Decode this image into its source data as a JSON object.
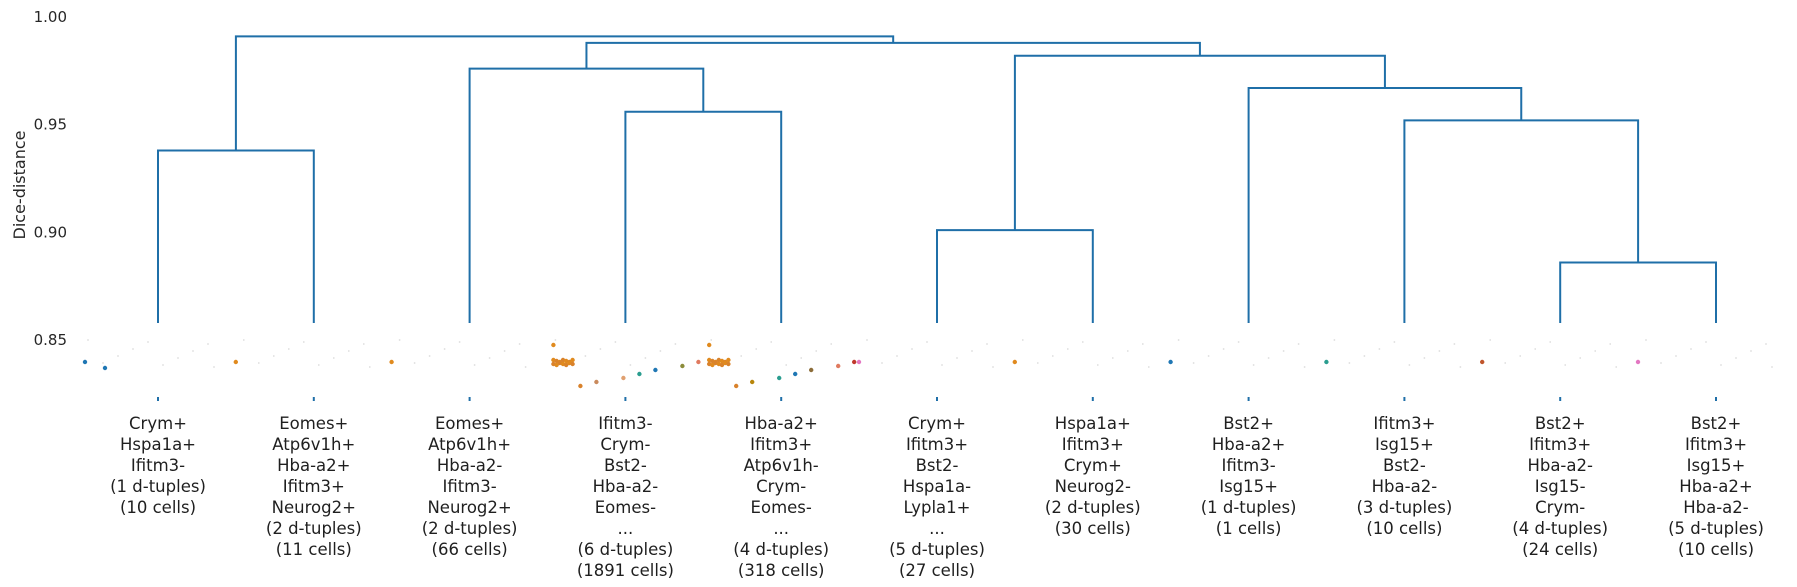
{
  "chart_data": {
    "type": "dendrogram",
    "ylabel": "Dice-distance",
    "ylim": [
      0.82,
      1.0
    ],
    "y_ticks": [
      "0.85",
      "0.90",
      "0.95",
      "1.00"
    ],
    "y_tick_values": [
      0.85,
      0.9,
      0.95,
      1.0
    ],
    "line_color": "#1f6fa8",
    "leaves": [
      {
        "lines": [
          "Crym+",
          "Hspa1a+",
          "Ifitm3-",
          "(1 d-tuples)",
          "(10 cells)"
        ],
        "dot_colors": [
          "#1f77b4",
          "#1f77b4"
        ]
      },
      {
        "lines": [
          "Eomes+",
          "Atp6v1h+",
          "Hba-a2+",
          "Ifitm3+",
          "Neurog2+",
          "(2 d-tuples)",
          "(11 cells)"
        ],
        "dot_colors": [
          "#e08a1e"
        ]
      },
      {
        "lines": [
          "Eomes+",
          "Atp6v1h+",
          "Hba-a2-",
          "Ifitm3-",
          "Neurog2+",
          "(2 d-tuples)",
          "(66 cells)"
        ],
        "dot_colors": [
          "#e08a1e"
        ]
      },
      {
        "lines": [
          "Ifitm3-",
          "Crym-",
          "Bst2-",
          "Hba-a2-",
          "Eomes-",
          "...",
          "(6 d-tuples)",
          "(1891 cells)"
        ],
        "dot_colors": [
          "#e08a1e",
          "#d9822b",
          "#c98a5c",
          "#e0a070",
          "#2a9d8f",
          "#1f77b4",
          "#8c8c3a",
          "#e07a5f"
        ]
      },
      {
        "lines": [
          "Hba-a2+",
          "Ifitm3+",
          "Atp6v1h-",
          "Crym-",
          "Eomes-",
          "...",
          "(4 d-tuples)",
          "(318 cells)"
        ],
        "dot_colors": [
          "#e08a1e",
          "#d9822b",
          "#b8860b",
          "#2a9d8f",
          "#1f77b4",
          "#8c6d3a",
          "#e07a5f",
          "#c0392b"
        ]
      },
      {
        "lines": [
          "Crym+",
          "Ifitm3+",
          "Bst2-",
          "Hspa1a-",
          "Lypla1+",
          "...",
          "(5 d-tuples)",
          "(27 cells)"
        ],
        "dot_colors": [
          "#e377c2"
        ]
      },
      {
        "lines": [
          "Hspa1a+",
          "Ifitm3+",
          "Crym+",
          "Neurog2-",
          "(2 d-tuples)",
          "(30 cells)"
        ],
        "dot_colors": [
          "#e08a1e"
        ]
      },
      {
        "lines": [
          "Bst2+",
          "Hba-a2+",
          "Ifitm3-",
          "Isg15+",
          "(1 d-tuples)",
          "(1 cells)"
        ],
        "dot_colors": [
          "#1f77b4"
        ]
      },
      {
        "lines": [
          "Ifitm3+",
          "Isg15+",
          "Bst2-",
          "Hba-a2-",
          "(3 d-tuples)",
          "(10 cells)"
        ],
        "dot_colors": [
          "#2a9d8f"
        ]
      },
      {
        "lines": [
          "Bst2+",
          "Ifitm3+",
          "Hba-a2-",
          "Isg15-",
          "Crym-",
          "(4 d-tuples)",
          "(24 cells)"
        ],
        "dot_colors": [
          "#c0552b"
        ]
      },
      {
        "lines": [
          "Bst2+",
          "Ifitm3+",
          "Isg15+",
          "Hba-a2+",
          "Hba-a2-",
          "(5 d-tuples)",
          "(10 cells)"
        ],
        "dot_colors": [
          "#e377c2"
        ]
      }
    ],
    "merges": [
      {
        "left": 0,
        "right": 1,
        "height": 0.938
      },
      {
        "left": 9,
        "right": 10,
        "height": 0.886
      },
      {
        "left": 5,
        "right": 6,
        "height": 0.901
      },
      {
        "left": 3,
        "right": 4,
        "height": 0.956
      },
      {
        "left": 8,
        "right": "m1",
        "height": 0.952
      },
      {
        "left": 7,
        "right": "m4",
        "height": 0.967
      },
      {
        "left": 2,
        "right": "m3",
        "height": 0.976
      },
      {
        "left": "m2",
        "right": "m5",
        "height": 0.982
      },
      {
        "left": "m6",
        "right": "m7",
        "height": 0.988
      },
      {
        "left": "m0",
        "right": "m8",
        "height": 0.991
      }
    ]
  }
}
